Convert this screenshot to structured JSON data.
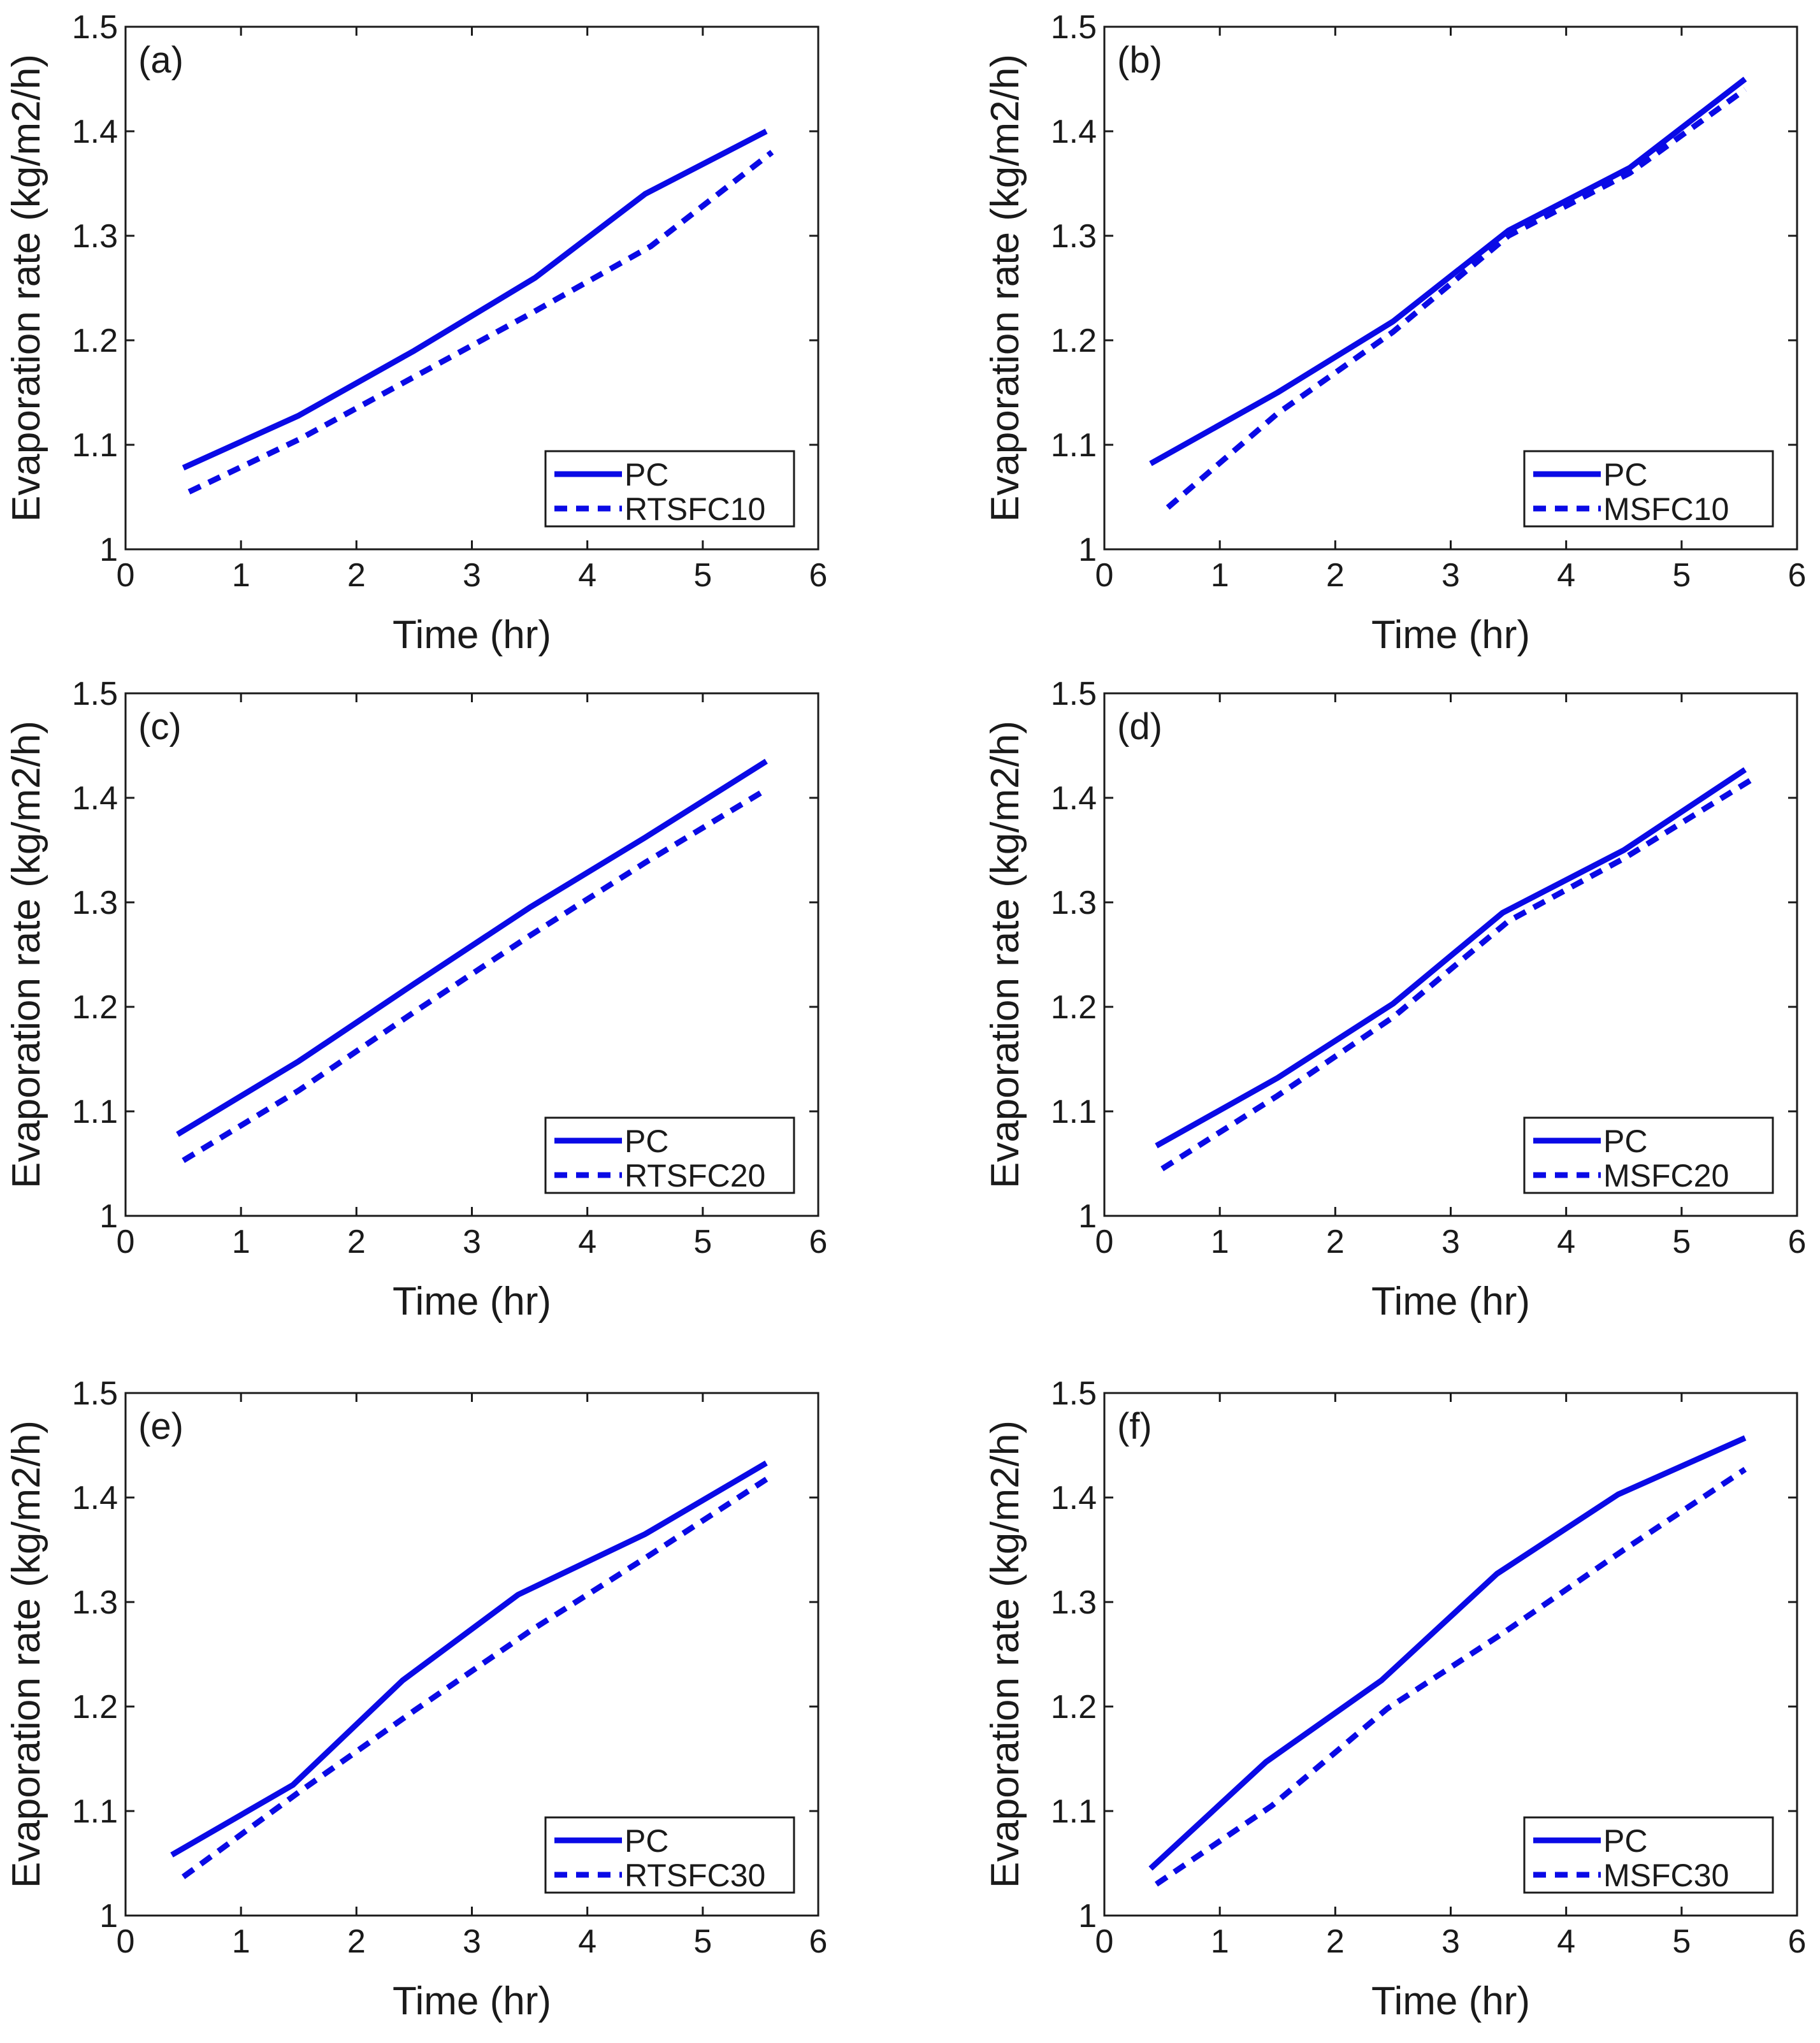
{
  "figure": {
    "series_color": "#0a0ae6",
    "axis_color": "#1a1a1a"
  },
  "chart_data": [
    {
      "type": "line",
      "panel_label": "(a)",
      "title": "",
      "xlabel": "Time (hr)",
      "ylabel": "Evaporation rate (kg/m2/h)",
      "xlim": [
        0,
        6
      ],
      "ylim": [
        1,
        1.5
      ],
      "xticks": [
        0,
        1,
        2,
        3,
        4,
        5,
        6
      ],
      "yticks": [
        1,
        1.1,
        1.2,
        1.3,
        1.4,
        1.5
      ],
      "ytick_labels": [
        "1",
        "1.1",
        "1.2",
        "1.3",
        "1.4",
        "1.5"
      ],
      "legend_position": "bottom-right",
      "series": [
        {
          "name": "PC",
          "style": "solid",
          "x": [
            0.5,
            1.5,
            2.5,
            3.55,
            4.5,
            5.55
          ],
          "y": [
            1.078,
            1.128,
            1.19,
            1.26,
            1.34,
            1.4
          ]
        },
        {
          "name": "RTSFC10",
          "style": "dashed",
          "x": [
            0.55,
            1.5,
            2.5,
            3.5,
            4.55,
            5.6
          ],
          "y": [
            1.055,
            1.105,
            1.165,
            1.225,
            1.29,
            1.38
          ]
        }
      ]
    },
    {
      "type": "line",
      "panel_label": "(b)",
      "title": "",
      "xlabel": "Time (hr)",
      "ylabel": "Evaporation rate (kg/m2/h)",
      "xlim": [
        0,
        6
      ],
      "ylim": [
        1,
        1.5
      ],
      "xticks": [
        0,
        1,
        2,
        3,
        4,
        5,
        6
      ],
      "yticks": [
        1,
        1.1,
        1.2,
        1.3,
        1.4,
        1.5
      ],
      "ytick_labels": [
        "1",
        "1.1",
        "1.2",
        "1.3",
        "1.4",
        "1.5"
      ],
      "legend_position": "bottom-right",
      "series": [
        {
          "name": "PC",
          "style": "solid",
          "x": [
            0.4,
            1.5,
            2.5,
            3.5,
            4.55,
            5.55
          ],
          "y": [
            1.082,
            1.15,
            1.218,
            1.305,
            1.365,
            1.45
          ]
        },
        {
          "name": "MSFC10",
          "style": "dashed",
          "x": [
            0.55,
            1.5,
            2.5,
            3.5,
            4.55,
            5.55
          ],
          "y": [
            1.04,
            1.13,
            1.208,
            1.3,
            1.36,
            1.44
          ]
        }
      ]
    },
    {
      "type": "line",
      "panel_label": "(c)",
      "title": "",
      "xlabel": "Time (hr)",
      "ylabel": "Evaporation rate (kg/m2/h)",
      "xlim": [
        0,
        6
      ],
      "ylim": [
        1,
        1.5
      ],
      "xticks": [
        0,
        1,
        2,
        3,
        4,
        5,
        6
      ],
      "yticks": [
        1,
        1.1,
        1.2,
        1.3,
        1.4,
        1.5
      ],
      "ytick_labels": [
        "1",
        "1.1",
        "1.2",
        "1.3",
        "1.4",
        "1.5"
      ],
      "legend_position": "bottom-right",
      "series": [
        {
          "name": "PC",
          "style": "solid",
          "x": [
            0.45,
            1.5,
            2.5,
            3.5,
            4.5,
            5.55
          ],
          "y": [
            1.078,
            1.148,
            1.222,
            1.295,
            1.362,
            1.435
          ]
        },
        {
          "name": "RTSFC20",
          "style": "dashed",
          "x": [
            0.5,
            1.5,
            2.5,
            3.5,
            4.5,
            5.55
          ],
          "y": [
            1.053,
            1.12,
            1.195,
            1.268,
            1.338,
            1.408
          ]
        }
      ]
    },
    {
      "type": "line",
      "panel_label": "(d)",
      "title": "",
      "xlabel": "Time (hr)",
      "ylabel": "Evaporation rate (kg/m2/h)",
      "xlim": [
        0,
        6
      ],
      "ylim": [
        1,
        1.5
      ],
      "xticks": [
        0,
        1,
        2,
        3,
        4,
        5,
        6
      ],
      "yticks": [
        1,
        1.1,
        1.2,
        1.3,
        1.4,
        1.5
      ],
      "ytick_labels": [
        "1",
        "1.1",
        "1.2",
        "1.3",
        "1.4",
        "1.5"
      ],
      "legend_position": "bottom-right",
      "series": [
        {
          "name": "PC",
          "style": "solid",
          "x": [
            0.45,
            1.5,
            2.5,
            3.45,
            4.5,
            5.55
          ],
          "y": [
            1.067,
            1.132,
            1.203,
            1.29,
            1.35,
            1.427
          ]
        },
        {
          "name": "MSFC20",
          "style": "dashed",
          "x": [
            0.5,
            1.5,
            2.5,
            3.5,
            4.5,
            5.6
          ],
          "y": [
            1.045,
            1.115,
            1.19,
            1.282,
            1.342,
            1.417
          ]
        }
      ]
    },
    {
      "type": "line",
      "panel_label": "(e)",
      "title": "",
      "xlabel": "Time (hr)",
      "ylabel": "Evaporation rate (kg/m2/h)",
      "xlim": [
        0,
        6
      ],
      "ylim": [
        1,
        1.5
      ],
      "xticks": [
        0,
        1,
        2,
        3,
        4,
        5,
        6
      ],
      "yticks": [
        1,
        1.1,
        1.2,
        1.3,
        1.4,
        1.5
      ],
      "ytick_labels": [
        "1",
        "1.1",
        "1.2",
        "1.3",
        "1.4",
        "1.5"
      ],
      "legend_position": "bottom-right",
      "series": [
        {
          "name": "PC",
          "style": "solid",
          "x": [
            0.4,
            1.45,
            2.4,
            3.4,
            4.5,
            5.55
          ],
          "y": [
            1.058,
            1.125,
            1.225,
            1.307,
            1.365,
            1.433
          ]
        },
        {
          "name": "RTSFC30",
          "style": "dashed",
          "x": [
            0.5,
            1.5,
            2.5,
            3.5,
            4.5,
            5.6
          ],
          "y": [
            1.037,
            1.118,
            1.196,
            1.272,
            1.342,
            1.421
          ]
        }
      ]
    },
    {
      "type": "line",
      "panel_label": "(f)",
      "title": "",
      "xlabel": "Time (hr)",
      "ylabel": "Evaporation rate (kg/m2/h)",
      "xlim": [
        0,
        6
      ],
      "ylim": [
        1,
        1.5
      ],
      "xticks": [
        0,
        1,
        2,
        3,
        4,
        5,
        6
      ],
      "yticks": [
        1,
        1.1,
        1.2,
        1.3,
        1.4,
        1.5
      ],
      "ytick_labels": [
        "1",
        "1.1",
        "1.2",
        "1.3",
        "1.4",
        "1.5"
      ],
      "legend_position": "bottom-right",
      "series": [
        {
          "name": "PC",
          "style": "solid",
          "x": [
            0.4,
            1.4,
            2.4,
            3.4,
            4.45,
            5.55
          ],
          "y": [
            1.045,
            1.147,
            1.225,
            1.327,
            1.403,
            1.457
          ]
        },
        {
          "name": "MSFC30",
          "style": "dashed",
          "x": [
            0.45,
            1.45,
            2.45,
            3.45,
            4.5,
            5.55
          ],
          "y": [
            1.03,
            1.105,
            1.198,
            1.27,
            1.35,
            1.427
          ]
        }
      ]
    }
  ]
}
